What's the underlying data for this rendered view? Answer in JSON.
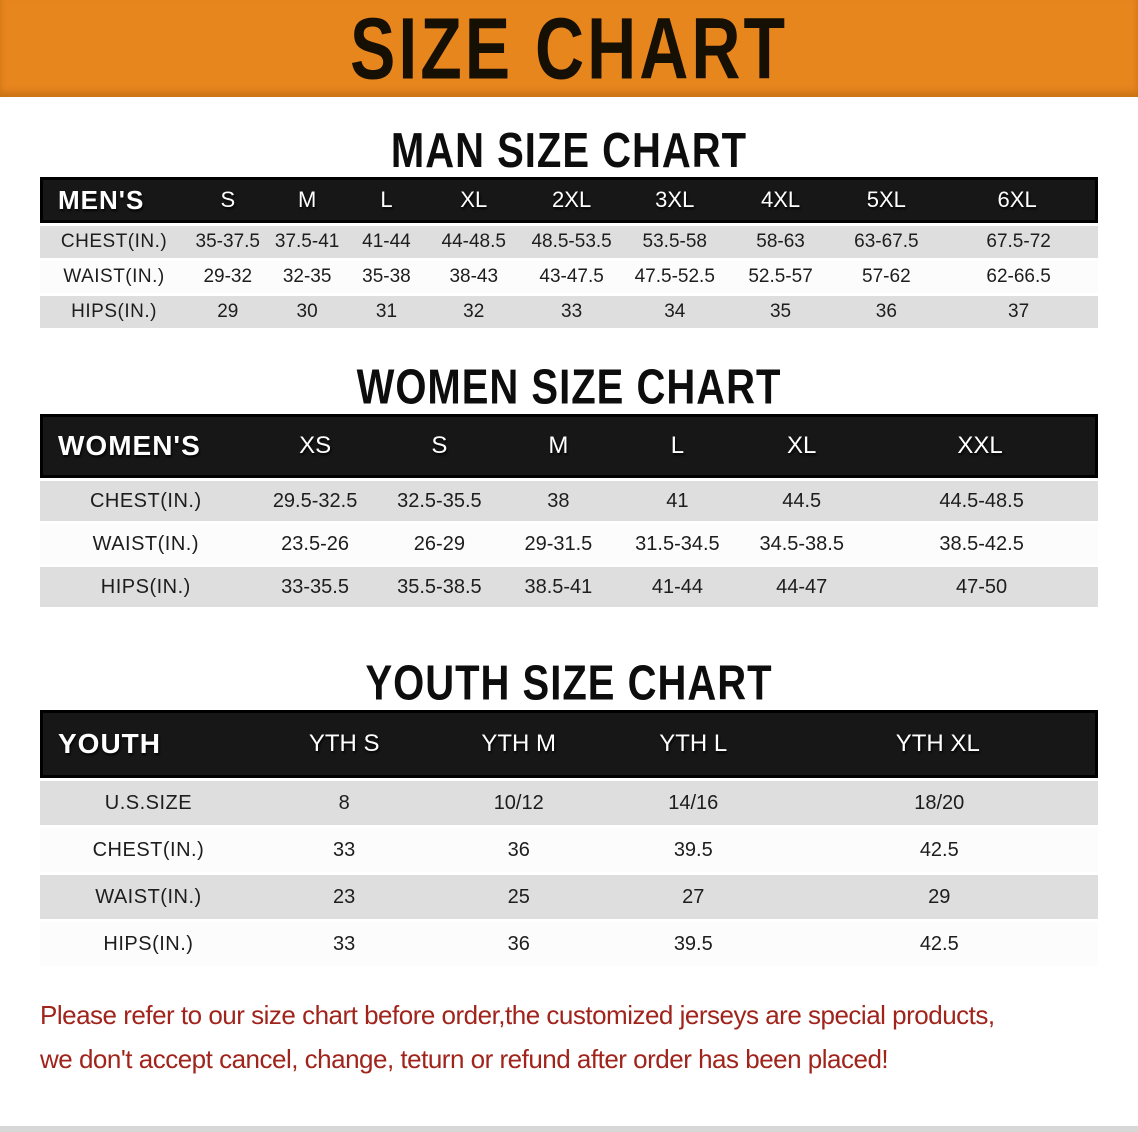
{
  "banner": {
    "title": "SIZE CHART"
  },
  "sections": [
    {
      "heading": "MAN SIZE CHART",
      "table": {
        "header_label": "MEN'S",
        "columns": [
          "S",
          "M",
          "L",
          "XL",
          "2XL",
          "3XL",
          "4XL",
          "5XL",
          "6XL"
        ],
        "rows": [
          {
            "label": "CHEST(IN.)",
            "values": [
              "35-37.5",
              "37.5-41",
              "41-44",
              "44-48.5",
              "48.5-53.5",
              "53.5-58",
              "58-63",
              "63-67.5",
              "67.5-72"
            ]
          },
          {
            "label": "WAIST(IN.)",
            "values": [
              "29-32",
              "32-35",
              "35-38",
              "38-43",
              "43-47.5",
              "47.5-52.5",
              "52.5-57",
              "57-62",
              "62-66.5"
            ]
          },
          {
            "label": "HIPS(IN.)",
            "values": [
              "29",
              "30",
              "31",
              "32",
              "33",
              "34",
              "35",
              "36",
              "37"
            ]
          }
        ]
      }
    },
    {
      "heading": "WOMEN SIZE CHART",
      "table": {
        "header_label": "WOMEN'S",
        "columns": [
          "XS",
          "S",
          "M",
          "L",
          "XL",
          "XXL"
        ],
        "rows": [
          {
            "label": "CHEST(IN.)",
            "values": [
              "29.5-32.5",
              "32.5-35.5",
              "38",
              "41",
              "44.5",
              "44.5-48.5"
            ]
          },
          {
            "label": "WAIST(IN.)",
            "values": [
              "23.5-26",
              "26-29",
              "29-31.5",
              "31.5-34.5",
              "34.5-38.5",
              "38.5-42.5"
            ]
          },
          {
            "label": "HIPS(IN.)",
            "values": [
              "33-35.5",
              "35.5-38.5",
              "38.5-41",
              "41-44",
              "44-47",
              "47-50"
            ]
          }
        ]
      }
    },
    {
      "heading": "YOUTH SIZE CHART",
      "table": {
        "header_label": "YOUTH",
        "columns": [
          "YTH S",
          "YTH M",
          "YTH L",
          "YTH XL"
        ],
        "rows": [
          {
            "label": "U.S.SIZE",
            "values": [
              "8",
              "10/12",
              "14/16",
              "18/20"
            ]
          },
          {
            "label": "CHEST(IN.)",
            "values": [
              "33",
              "36",
              "39.5",
              "42.5"
            ]
          },
          {
            "label": "WAIST(IN.)",
            "values": [
              "23",
              "25",
              "27",
              "29"
            ]
          },
          {
            "label": "HIPS(IN.)",
            "values": [
              "33",
              "36",
              "39.5",
              "42.5"
            ]
          }
        ]
      }
    }
  ],
  "footer": {
    "line1": "Please refer to our size chart before order,the customized jerseys are special products,",
    "line2": "we don't accept cancel, change, teturn or refund after order has been placed!"
  },
  "colors": {
    "banner_orange": "#E8861E",
    "header_black": "#171717",
    "row_shade": "#DEDEDE",
    "row_plain": "#FCFCFC",
    "footer_red": "#A0241C"
  }
}
